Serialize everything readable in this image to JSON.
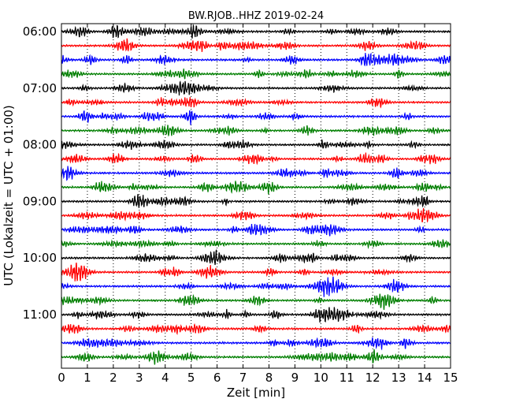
{
  "chart_data": {
    "type": "line",
    "title": "BW.RJOB..HHZ 2019-02-24",
    "xlabel": "Zeit  [min]",
    "ylabel": "UTC (Lokalzeit = UTC + 01:00)",
    "xlim": [
      0,
      15
    ],
    "x_ticks": [
      "0",
      "1",
      "2",
      "3",
      "4",
      "5",
      "6",
      "7",
      "8",
      "9",
      "10",
      "11",
      "12",
      "13",
      "14",
      "15"
    ],
    "y_tick_labels": [
      "06:00",
      "07:00",
      "08:00",
      "09:00",
      "10:00",
      "11:00"
    ],
    "grid": {
      "x": "dotted",
      "y": "none"
    },
    "trace_colors": [
      "#000000",
      "#ff0000",
      "#0000ff",
      "#007f00"
    ],
    "trace_count": 24,
    "trace_interval_min": 15,
    "start_time": "06:00",
    "end_time": "12:00"
  }
}
